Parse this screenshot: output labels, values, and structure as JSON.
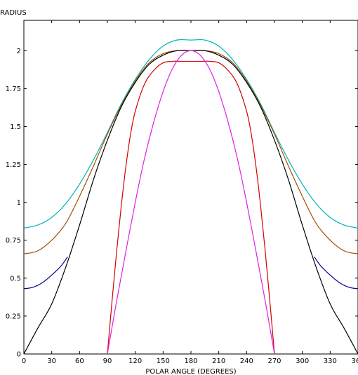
{
  "chart_data": {
    "type": "line",
    "title": "",
    "xlabel": "POLAR ANGLE (DEGREES)",
    "ylabel": "RADIUS",
    "xlim": [
      0,
      360
    ],
    "ylim": [
      0,
      2.2
    ],
    "grid": false,
    "legend": "none",
    "xticks": [
      0,
      30,
      60,
      90,
      120,
      150,
      180,
      210,
      240,
      270,
      300,
      330,
      360
    ],
    "xtick_labels": [
      "0",
      "30",
      "60",
      "90",
      "120",
      "150",
      "180",
      "210",
      "240",
      "270",
      "300",
      "330",
      "360"
    ],
    "yticks": [
      0,
      0.25,
      0.5,
      0.75,
      1,
      1.25,
      1.5,
      1.75,
      2
    ],
    "ytick_labels": [
      "0",
      "0.25",
      "0.5",
      "0.75",
      "1",
      "1.25",
      "1.5",
      "1.75",
      "2"
    ],
    "series": [
      {
        "color": "#00b4b4",
        "x": [
          0,
          15,
          30,
          45,
          60,
          75,
          90,
          105,
          120,
          135,
          150,
          165,
          180,
          195,
          210,
          225,
          240,
          255,
          270,
          285,
          300,
          315,
          330,
          345,
          360
        ],
        "y": [
          0.83,
          0.85,
          0.9,
          0.99,
          1.12,
          1.28,
          1.46,
          1.65,
          1.81,
          1.94,
          2.03,
          2.07,
          2.07,
          2.07,
          2.03,
          1.94,
          1.81,
          1.65,
          1.46,
          1.28,
          1.12,
          0.99,
          0.9,
          0.85,
          0.83
        ]
      },
      {
        "color": "#a05000",
        "x": [
          0,
          15,
          30,
          45,
          60,
          75,
          90,
          105,
          120,
          135,
          150,
          165,
          180,
          195,
          210,
          225,
          240,
          255,
          270,
          285,
          300,
          315,
          330,
          345,
          360
        ],
        "y": [
          0.66,
          0.68,
          0.75,
          0.86,
          1.04,
          1.24,
          1.45,
          1.64,
          1.8,
          1.92,
          1.98,
          2.0,
          2.0,
          2.0,
          1.98,
          1.92,
          1.8,
          1.64,
          1.45,
          1.24,
          1.04,
          0.86,
          0.75,
          0.68,
          0.66
        ]
      },
      {
        "color": "#00008c",
        "x": [
          0,
          10,
          20,
          30,
          40,
          47
        ],
        "y": [
          0.43,
          0.44,
          0.47,
          0.52,
          0.58,
          0.64
        ]
      },
      {
        "color": "#00008c",
        "x": [
          313,
          320,
          330,
          340,
          350,
          360
        ],
        "y": [
          0.64,
          0.58,
          0.52,
          0.47,
          0.44,
          0.43
        ]
      },
      {
        "color": "#000000",
        "x": [
          0,
          15,
          30,
          45,
          60,
          75,
          90,
          105,
          120,
          135,
          150,
          165,
          180,
          195,
          210,
          225,
          240,
          255,
          270,
          285,
          300,
          315,
          330,
          345,
          360
        ],
        "y": [
          0.0,
          0.17,
          0.33,
          0.57,
          0.85,
          1.15,
          1.41,
          1.63,
          1.79,
          1.91,
          1.97,
          2.0,
          2.0,
          2.0,
          1.97,
          1.91,
          1.79,
          1.63,
          1.41,
          1.15,
          0.85,
          0.57,
          0.33,
          0.17,
          0.0
        ]
      },
      {
        "color": "#d40000",
        "x": [
          90,
          95,
          100,
          105,
          110,
          115,
          120,
          130,
          140,
          150,
          160,
          170,
          180,
          190,
          200,
          210,
          220,
          230,
          240,
          245,
          250,
          255,
          260,
          265,
          270
        ],
        "y": [
          0.0,
          0.35,
          0.68,
          0.98,
          1.24,
          1.45,
          1.6,
          1.78,
          1.87,
          1.92,
          1.93,
          1.93,
          1.93,
          1.93,
          1.93,
          1.92,
          1.87,
          1.78,
          1.6,
          1.45,
          1.24,
          0.98,
          0.68,
          0.35,
          0.0
        ]
      },
      {
        "color": "#e020e0",
        "x": [
          90,
          100,
          110,
          120,
          130,
          140,
          150,
          160,
          170,
          180,
          190,
          200,
          210,
          220,
          230,
          240,
          250,
          260,
          270
        ],
        "y": [
          0.0,
          0.35,
          0.68,
          1.0,
          1.29,
          1.53,
          1.73,
          1.88,
          1.97,
          2.0,
          1.97,
          1.88,
          1.73,
          1.53,
          1.29,
          1.0,
          0.68,
          0.35,
          0.0
        ]
      }
    ]
  }
}
